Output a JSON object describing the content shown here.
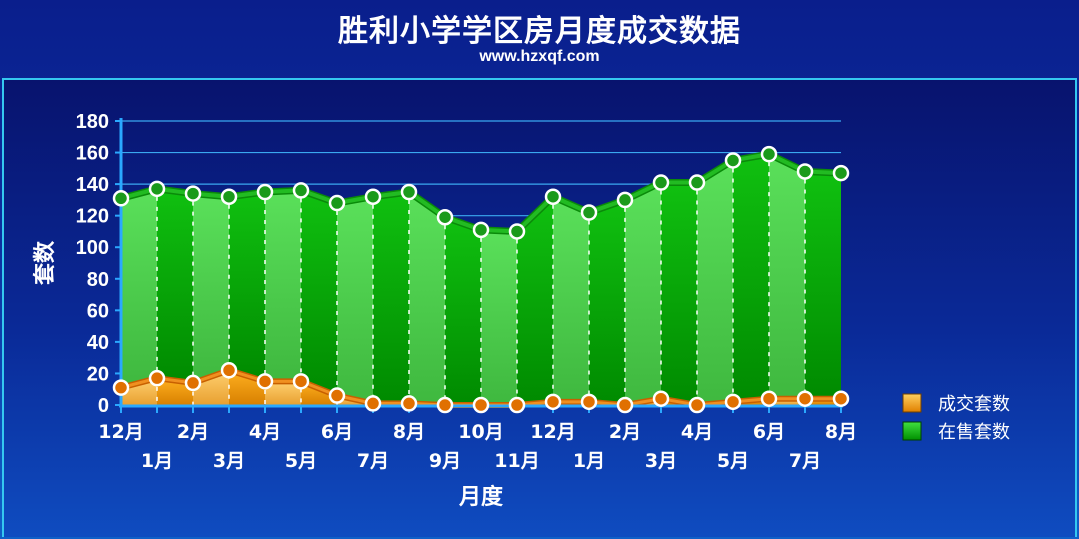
{
  "header": {
    "title": "胜利小学学区房月度成交数据",
    "subtitle": "www.hzxqf.com"
  },
  "chart_data": {
    "type": "area",
    "title": "胜利小学学区房月度成交数据",
    "subtitle": "www.hzxqf.com",
    "xlabel": "月度",
    "ylabel": "套数",
    "ylim": [
      0,
      180
    ],
    "yticks": [
      0,
      20,
      40,
      60,
      80,
      100,
      120,
      140,
      160,
      180
    ],
    "categories": [
      "12月",
      "1月",
      "2月",
      "3月",
      "4月",
      "5月",
      "6月",
      "7月",
      "8月",
      "9月",
      "10月",
      "11月",
      "12月",
      "1月",
      "2月",
      "3月",
      "4月",
      "5月",
      "6月",
      "7月",
      "8月"
    ],
    "series": [
      {
        "name": "成交套数",
        "color": "#f0a020",
        "values": [
          11,
          17,
          14,
          22,
          15,
          15,
          6,
          1,
          1,
          0,
          0,
          0,
          2,
          2,
          0,
          4,
          0,
          2,
          4,
          4,
          4
        ]
      },
      {
        "name": "在售套数",
        "color": "#22cc22",
        "values": [
          131,
          137,
          134,
          132,
          135,
          136,
          128,
          132,
          135,
          119,
          111,
          110,
          132,
          122,
          130,
          141,
          141,
          155,
          159,
          148,
          147
        ]
      }
    ],
    "legend_position": "right",
    "grid": true
  }
}
